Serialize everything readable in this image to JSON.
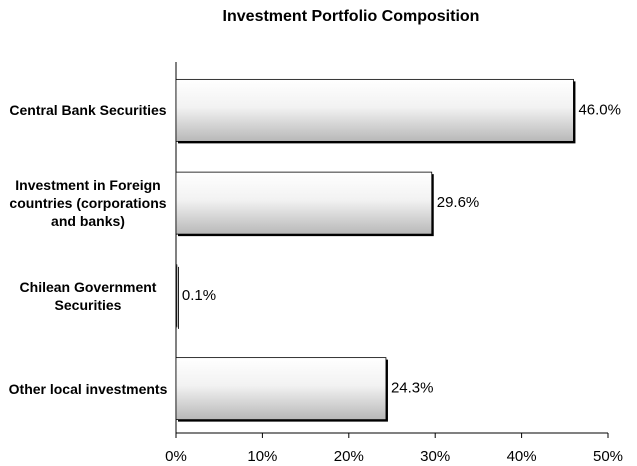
{
  "chart_data": {
    "type": "bar",
    "orientation": "horizontal",
    "title": "Investment Portfolio Composition",
    "categories": [
      "Central Bank Securities",
      "Investment in Foreign countries (corporations and banks)",
      "Chilean Government Securities",
      "Other local investments"
    ],
    "values": [
      46.0,
      29.6,
      0.1,
      24.3
    ],
    "value_labels": [
      "46.0%",
      "29.6%",
      "0.1%",
      "24.3%"
    ],
    "xlim": [
      0,
      50
    ],
    "xticks": [
      {
        "value": 0,
        "label": "0%"
      },
      {
        "value": 10,
        "label": "10%"
      },
      {
        "value": 20,
        "label": "20%"
      },
      {
        "value": 30,
        "label": "30%"
      },
      {
        "value": 40,
        "label": "40%"
      },
      {
        "value": 50,
        "label": "50%"
      }
    ]
  }
}
